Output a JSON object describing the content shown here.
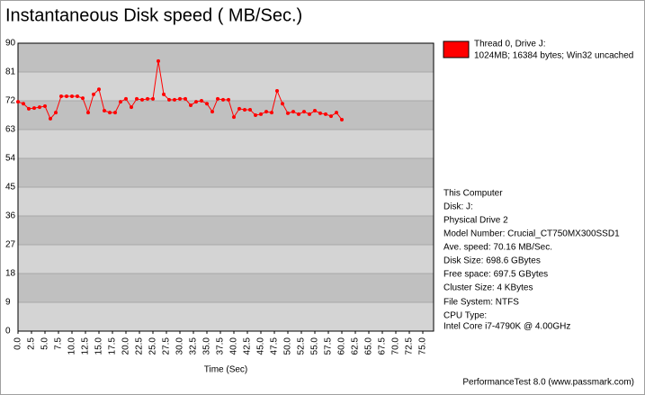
{
  "chart_data": {
    "type": "line",
    "title": "Instantaneous Disk speed ( MB/Sec.)",
    "x_label": "Time (Sec)",
    "x": [
      0,
      1,
      2,
      3,
      4,
      5,
      6,
      7,
      8,
      9,
      10,
      11,
      12,
      13,
      14,
      15,
      16,
      17,
      18,
      19,
      20,
      21,
      22,
      23,
      24,
      25,
      26,
      27,
      28,
      29,
      30,
      31,
      32,
      33,
      34,
      35,
      36,
      37,
      38,
      39,
      40,
      41,
      42,
      43,
      44,
      45,
      46,
      47,
      48,
      49,
      50,
      51,
      52,
      53,
      54,
      55,
      56,
      57,
      58,
      59,
      60
    ],
    "series": [
      {
        "name": "Thread 0, Drive J:",
        "description": "1024MB; 16384 bytes; Win32 uncached",
        "color": "#ff0000",
        "values": [
          71.7,
          71.1,
          69.5,
          69.7,
          70.0,
          70.3,
          66.4,
          68.3,
          73.4,
          73.4,
          73.4,
          73.4,
          72.8,
          68.3,
          74.0,
          75.6,
          68.9,
          68.3,
          68.3,
          71.7,
          72.6,
          70.0,
          72.6,
          72.3,
          72.6,
          72.6,
          84.4,
          74.0,
          72.3,
          72.3,
          72.6,
          72.6,
          70.6,
          71.7,
          72.0,
          71.1,
          68.6,
          72.6,
          72.3,
          72.3,
          66.9,
          69.5,
          69.2,
          69.2,
          67.5,
          67.8,
          68.6,
          68.3,
          75.1,
          71.1,
          68.1,
          68.6,
          67.8,
          68.6,
          67.8,
          68.9,
          68.1,
          67.8,
          67.2,
          68.3,
          66.1
        ]
      }
    ],
    "xlim": [
      0,
      77
    ],
    "xticks": [
      {
        "value": 0,
        "label": "0.0"
      },
      {
        "value": 2.5,
        "label": "2.5"
      },
      {
        "value": 5,
        "label": "5.0"
      },
      {
        "value": 7.5,
        "label": "7.5"
      },
      {
        "value": 10,
        "label": "10.0"
      },
      {
        "value": 12.5,
        "label": "12.5"
      },
      {
        "value": 15,
        "label": "15.0"
      },
      {
        "value": 17.5,
        "label": "17.5"
      },
      {
        "value": 20,
        "label": "20.0"
      },
      {
        "value": 22.5,
        "label": "22.5"
      },
      {
        "value": 25,
        "label": "25.0"
      },
      {
        "value": 27.5,
        "label": "27.5"
      },
      {
        "value": 30,
        "label": "30.0"
      },
      {
        "value": 32.5,
        "label": "32.5"
      },
      {
        "value": 35,
        "label": "35.0"
      },
      {
        "value": 37.5,
        "label": "37.5"
      },
      {
        "value": 40,
        "label": "40.0"
      },
      {
        "value": 42.5,
        "label": "42.5"
      },
      {
        "value": 45,
        "label": "45.0"
      },
      {
        "value": 47.5,
        "label": "47.5"
      },
      {
        "value": 50,
        "label": "50.0"
      },
      {
        "value": 52.5,
        "label": "52.5"
      },
      {
        "value": 55,
        "label": "55.0"
      },
      {
        "value": 57.5,
        "label": "57.5"
      },
      {
        "value": 60,
        "label": "60.0"
      },
      {
        "value": 62.5,
        "label": "62.5"
      },
      {
        "value": 65,
        "label": "65.0"
      },
      {
        "value": 67.5,
        "label": "67.5"
      },
      {
        "value": 70,
        "label": "70.0"
      },
      {
        "value": 72.5,
        "label": "72.5"
      },
      {
        "value": 75,
        "label": "75.0"
      }
    ],
    "ylim": [
      0,
      90
    ],
    "yticks": [
      0,
      9,
      18,
      27,
      36,
      45,
      54,
      63,
      72,
      81,
      90
    ],
    "info": [
      "This Computer",
      "Disk: J:",
      "Physical Drive 2",
      "Model Number: Crucial_CT750MX300SSD1",
      "Ave. speed: 70.16 MB/Sec.",
      "Disk Size: 698.6 GBytes",
      "Free space: 697.5 GBytes",
      "Cluster Size: 4 KBytes",
      "File System: NTFS",
      "CPU Type:",
      "Intel Core i7-4790K @ 4.00GHz"
    ],
    "footer": "PerformanceTest 8.0 (www.passmark.com)"
  }
}
